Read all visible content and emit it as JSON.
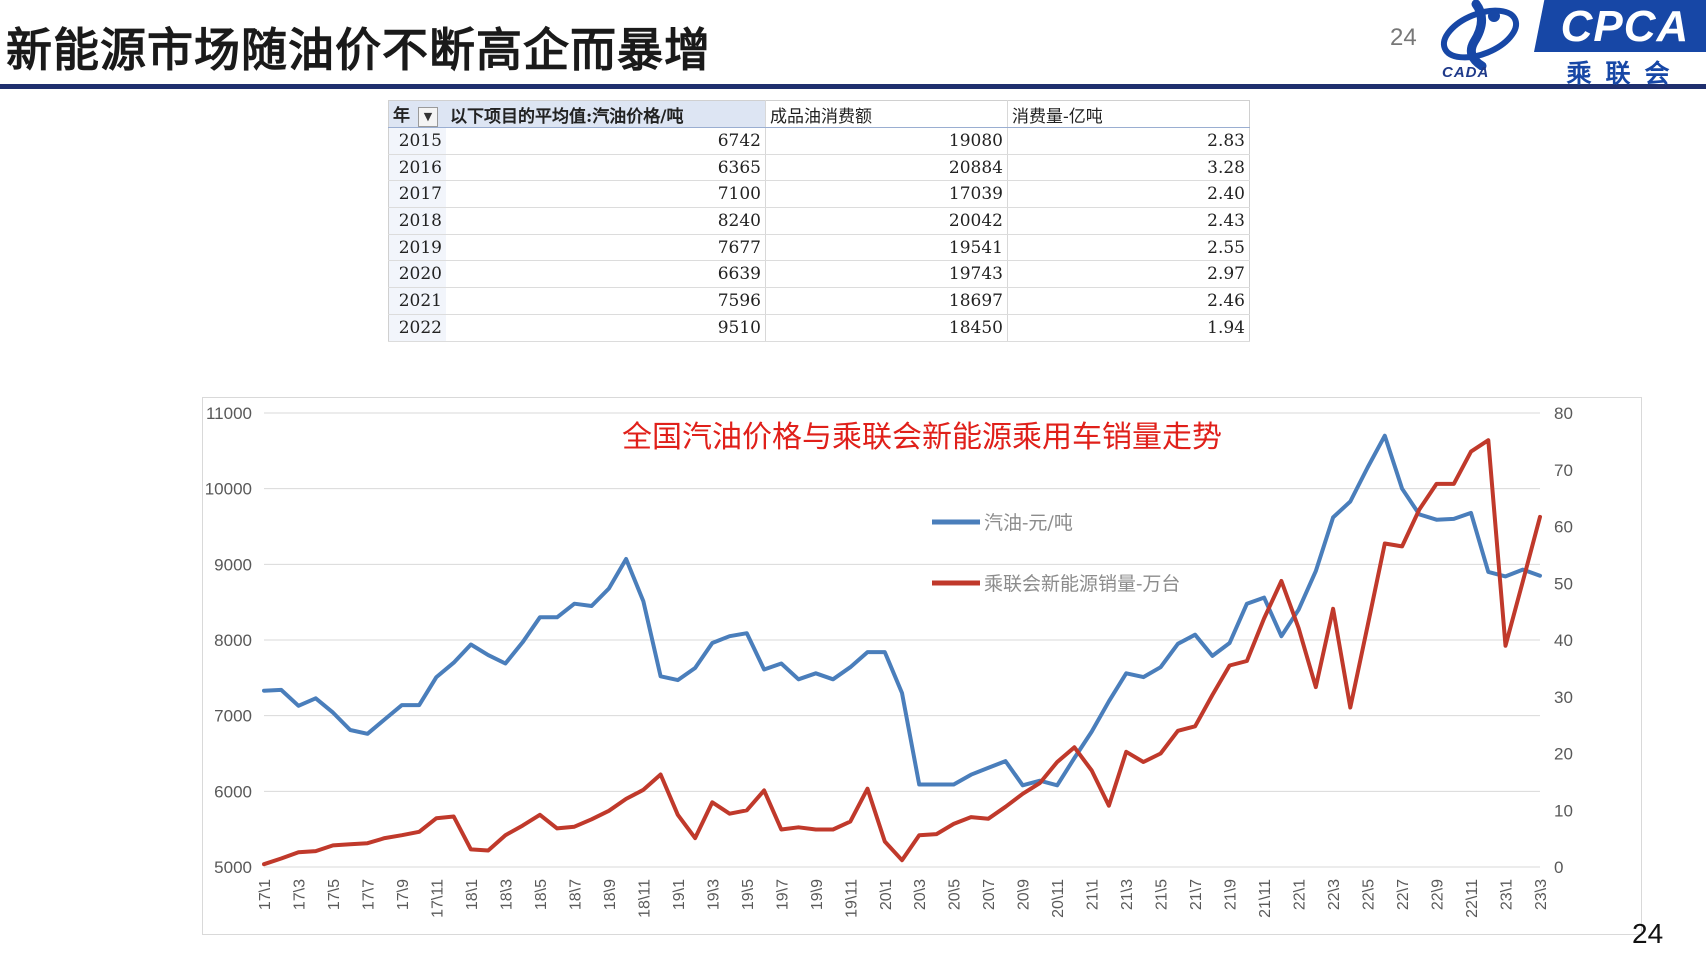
{
  "header": {
    "title": "新能源市场随油价不断高企而暴增",
    "page_number": "24",
    "logo": {
      "cada_text": "CADA",
      "cpca_text": "CPCA",
      "cn_text": "乘联会"
    }
  },
  "table": {
    "headers": [
      "年",
      "以下项目的平均值:汽油价格/吨",
      "成品油消费额",
      "消费量-亿吨"
    ],
    "filter_icon": "filter-icon",
    "rows": [
      [
        "2015",
        "6742",
        "19080",
        "2.83"
      ],
      [
        "2016",
        "6365",
        "20884",
        "3.28"
      ],
      [
        "2017",
        "7100",
        "17039",
        "2.40"
      ],
      [
        "2018",
        "8240",
        "20042",
        "2.43"
      ],
      [
        "2019",
        "7677",
        "19541",
        "2.55"
      ],
      [
        "2020",
        "6639",
        "19743",
        "2.97"
      ],
      [
        "2021",
        "7596",
        "18697",
        "2.46"
      ],
      [
        "2022",
        "9510",
        "18450",
        "1.94"
      ]
    ]
  },
  "footer": {
    "page_number": "24"
  },
  "colors": {
    "blue": "#4a7ebb",
    "red": "#c0392b",
    "title_red": "#e0201a",
    "rule": "#1f2f6e"
  },
  "chart_data": {
    "type": "line",
    "title": "全国汽油价格与乘联会新能源乘用车销量走势",
    "legend_position": "center-right",
    "grid": true,
    "x": [
      "17\\1",
      "17\\2",
      "17\\3",
      "17\\4",
      "17\\5",
      "17\\6",
      "17\\7",
      "17\\8",
      "17\\9",
      "17\\10",
      "17\\11",
      "17\\12",
      "18\\1",
      "18\\2",
      "18\\3",
      "18\\4",
      "18\\5",
      "18\\6",
      "18\\7",
      "18\\8",
      "18\\9",
      "18\\10",
      "18\\11",
      "18\\12",
      "19\\1",
      "19\\2",
      "19\\3",
      "19\\4",
      "19\\5",
      "19\\6",
      "19\\7",
      "19\\8",
      "19\\9",
      "19\\10",
      "19\\11",
      "19\\12",
      "20\\1",
      "20\\2",
      "20\\3",
      "20\\4",
      "20\\5",
      "20\\6",
      "20\\7",
      "20\\8",
      "20\\9",
      "20\\10",
      "20\\11",
      "20\\12",
      "21\\1",
      "21\\2",
      "21\\3",
      "21\\4",
      "21\\5",
      "21\\6",
      "21\\7",
      "21\\8",
      "21\\9",
      "21\\10",
      "21\\11",
      "21\\12",
      "22\\1",
      "22\\2",
      "22\\3",
      "22\\4",
      "22\\5",
      "22\\6",
      "22\\7",
      "22\\8",
      "22\\9",
      "22\\10",
      "22\\11",
      "22\\12",
      "23\\1",
      "23\\2",
      "23\\3"
    ],
    "x_tick_labels": [
      "17\\1",
      "17\\3",
      "17\\5",
      "17\\7",
      "17\\9",
      "17\\11",
      "18\\1",
      "18\\3",
      "18\\5",
      "18\\7",
      "18\\9",
      "18\\11",
      "19\\1",
      "19\\3",
      "19\\5",
      "19\\7",
      "19\\9",
      "19\\11",
      "20\\1",
      "20\\3",
      "20\\5",
      "20\\7",
      "20\\9",
      "20\\11",
      "21\\1",
      "21\\3",
      "21\\5",
      "21\\7",
      "21\\9",
      "21\\11",
      "22\\1",
      "22\\3",
      "22\\5",
      "22\\7",
      "22\\9",
      "22\\11",
      "23\\1",
      "23\\3"
    ],
    "y_left": {
      "lim": [
        5000,
        11000
      ],
      "ticks": [
        "5000",
        "6000",
        "7000",
        "8000",
        "9000",
        "10000",
        "11000"
      ]
    },
    "y_right": {
      "lim": [
        0,
        80
      ],
      "ticks": [
        "0",
        "10",
        "20",
        "30",
        "40",
        "50",
        "60",
        "70",
        "80"
      ]
    },
    "series": [
      {
        "name": "汽油-元/吨",
        "axis": "left",
        "color": "#4a7ebb",
        "values": [
          7330,
          7340,
          7130,
          7230,
          7040,
          6810,
          6760,
          6950,
          7140,
          7140,
          7510,
          7700,
          7940,
          7800,
          7690,
          7970,
          8300,
          8300,
          8480,
          8450,
          8680,
          9070,
          8510,
          7520,
          7470,
          7630,
          7960,
          8050,
          8090,
          7610,
          7690,
          7480,
          7560,
          7480,
          7640,
          7840,
          7840,
          7300,
          6090,
          6090,
          6090,
          6220,
          6310,
          6400,
          6080,
          6140,
          6080,
          6440,
          6790,
          7190,
          7560,
          7510,
          7640,
          7950,
          8070,
          7790,
          7960,
          8480,
          8560,
          8050,
          8400,
          8910,
          9620,
          9830,
          10280,
          10700,
          10000,
          9660,
          9590,
          9600,
          9680,
          8900,
          8840,
          8930,
          8850
        ]
      },
      {
        "name": "乘联会新能源销量-万台",
        "axis": "right",
        "color": "#c0392b",
        "values": [
          0.5,
          1.5,
          2.6,
          2.8,
          3.8,
          4.0,
          4.2,
          5.1,
          5.6,
          6.2,
          8.6,
          8.9,
          3.1,
          2.9,
          5.6,
          7.3,
          9.2,
          6.8,
          7.1,
          8.4,
          9.9,
          12.0,
          13.6,
          16.3,
          9.2,
          5.1,
          11.4,
          9.4,
          10.0,
          13.5,
          6.6,
          7.0,
          6.6,
          6.6,
          8.0,
          13.8,
          4.5,
          1.2,
          5.6,
          5.8,
          7.6,
          8.8,
          8.5,
          10.6,
          12.9,
          14.8,
          18.5,
          21.1,
          17.0,
          10.8,
          20.3,
          18.5,
          20.0,
          24.0,
          24.8,
          30.3,
          35.5,
          36.3,
          43.8,
          50.4,
          42.1,
          31.7,
          45.5,
          28.1,
          42.5,
          57.0,
          56.5,
          63.0,
          67.5,
          67.5,
          73.2,
          75.2,
          39.0,
          50.3,
          61.7
        ]
      }
    ]
  }
}
